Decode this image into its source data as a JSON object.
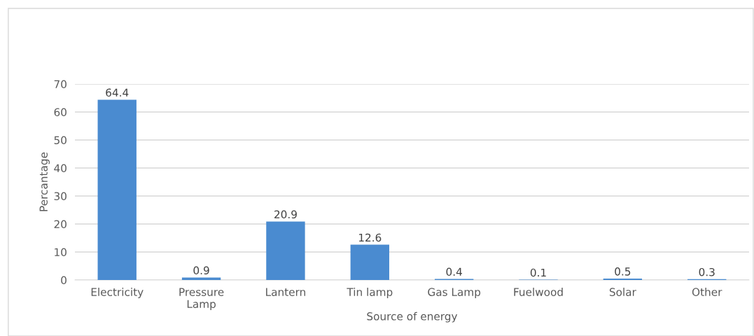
{
  "chart_data": {
    "type": "bar",
    "xlabel": "Source of energy",
    "ylabel": "Percantage",
    "categories": [
      "Electricity",
      "Pressure\nLamp",
      "Lantern",
      "Tin lamp",
      "Gas Lamp",
      "Fuelwood",
      "Solar",
      "Other"
    ],
    "values": [
      64.4,
      0.9,
      20.9,
      12.6,
      0.4,
      0.1,
      0.5,
      0.3
    ],
    "color": "#4a8bd0",
    "ylim": [
      0,
      70
    ],
    "yticks": [
      0,
      10,
      20,
      30,
      40,
      50,
      60,
      70
    ],
    "grid": "y",
    "data_labels": true
  }
}
